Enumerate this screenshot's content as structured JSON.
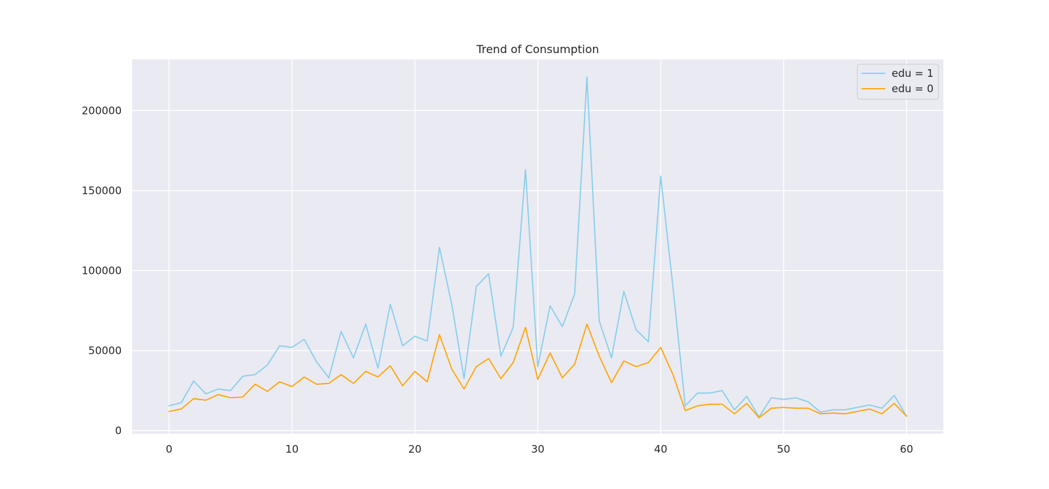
{
  "chart_data": {
    "type": "line",
    "title": "Trend of Consumption",
    "xlabel": "",
    "ylabel": "",
    "xlim": [
      -3,
      63
    ],
    "ylim": [
      -2000,
      232000
    ],
    "x_ticks": [
      0,
      10,
      20,
      30,
      40,
      50,
      60
    ],
    "y_ticks": [
      0,
      50000,
      100000,
      150000,
      200000
    ],
    "grid": true,
    "legend_position": "top-right",
    "x": [
      0,
      1,
      2,
      3,
      4,
      5,
      6,
      7,
      8,
      9,
      10,
      11,
      12,
      13,
      14,
      15,
      16,
      17,
      18,
      19,
      20,
      21,
      22,
      23,
      24,
      25,
      26,
      27,
      28,
      29,
      30,
      31,
      32,
      33,
      34,
      35,
      36,
      37,
      38,
      39,
      40,
      41,
      42,
      43,
      44,
      45,
      46,
      47,
      48,
      49,
      50,
      51,
      52,
      53,
      54,
      55,
      56,
      57,
      58,
      59,
      60
    ],
    "series": [
      {
        "name": "edu = 1",
        "color": "#87ceeb",
        "values": [
          15500,
          17500,
          31000,
          23000,
          26000,
          25000,
          34000,
          35000,
          41000,
          53000,
          52000,
          57000,
          43000,
          33000,
          62000,
          45500,
          66500,
          39000,
          79000,
          53000,
          59000,
          56000,
          114500,
          79000,
          32500,
          90000,
          98000,
          46500,
          64500,
          163000,
          40000,
          78000,
          65000,
          85500,
          221000,
          68500,
          45500,
          87000,
          63000,
          55500,
          159000,
          89500,
          15500,
          23500,
          23500,
          25000,
          13000,
          21500,
          8500,
          20500,
          19500,
          20500,
          18000,
          11500,
          13000,
          13000,
          14500,
          16000,
          14000,
          22000,
          9000
        ]
      },
      {
        "name": "edu = 0",
        "color": "#ffa500",
        "values": [
          12000,
          13500,
          20000,
          19000,
          22500,
          20500,
          21000,
          29000,
          24500,
          30500,
          27500,
          33500,
          29000,
          29500,
          35000,
          29500,
          37000,
          33500,
          40500,
          28000,
          37000,
          30500,
          60000,
          38500,
          26000,
          40000,
          45000,
          32500,
          42500,
          64500,
          32000,
          48500,
          33000,
          41500,
          66500,
          46500,
          30000,
          43500,
          40000,
          42500,
          52000,
          35000,
          12500,
          15500,
          16500,
          16500,
          10500,
          17000,
          8000,
          14000,
          14500,
          14000,
          14000,
          10500,
          11000,
          10500,
          12000,
          13500,
          10500,
          17000,
          9000
        ]
      }
    ]
  }
}
